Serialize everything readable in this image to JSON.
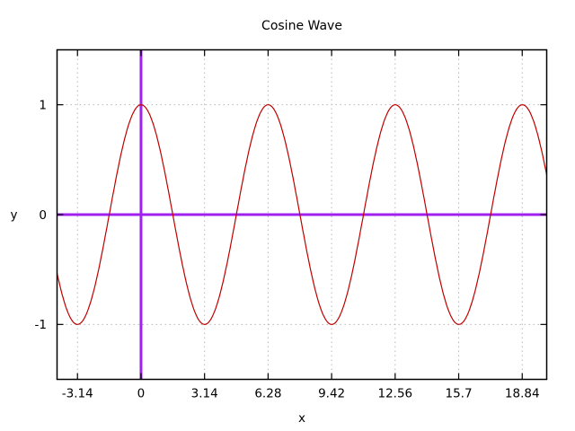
{
  "chart_data": {
    "type": "line",
    "title": "Cosine Wave",
    "xlabel": "x",
    "ylabel": "y",
    "function": "cos",
    "function_label": "cos(x)",
    "xlim": [
      -4.15,
      20.05
    ],
    "ylim": [
      -1.5,
      1.5
    ],
    "sample_step": 0.05,
    "grid": true,
    "grid_style": "dotted",
    "legend": "none",
    "x_ticks": [
      {
        "value": -3.14,
        "label": "-3.14"
      },
      {
        "value": 0,
        "label": "0"
      },
      {
        "value": 3.14,
        "label": "3.14"
      },
      {
        "value": 6.28,
        "label": "6.28"
      },
      {
        "value": 9.42,
        "label": "9.42"
      },
      {
        "value": 12.56,
        "label": "12.56"
      },
      {
        "value": 15.7,
        "label": "15.7"
      },
      {
        "value": 18.84,
        "label": "18.84"
      }
    ],
    "y_ticks": [
      {
        "value": -1,
        "label": "-1"
      },
      {
        "value": 0,
        "label": "0"
      },
      {
        "value": 1,
        "label": "1"
      }
    ],
    "series": [
      {
        "name": "cos(x)",
        "color": "#c00000",
        "line_width": 1.2
      }
    ],
    "zero_axes": {
      "x_zero_line": true,
      "y_zero_line": true,
      "color": "#a020f0",
      "line_width": 3
    },
    "key_points": [
      {
        "x": -3.14,
        "y": -1
      },
      {
        "x": 0,
        "y": 1
      },
      {
        "x": 3.14,
        "y": -1
      },
      {
        "x": 6.28,
        "y": 1
      },
      {
        "x": 9.42,
        "y": -1
      },
      {
        "x": 12.56,
        "y": 1
      },
      {
        "x": 15.7,
        "y": -1
      },
      {
        "x": 18.84,
        "y": 1
      },
      {
        "x": 20.0,
        "y": 0.41
      }
    ],
    "colors": {
      "background": "#ffffff",
      "border": "#000000",
      "grid": "#b8b8b8",
      "tick": "#000000",
      "text": "#000000"
    }
  }
}
